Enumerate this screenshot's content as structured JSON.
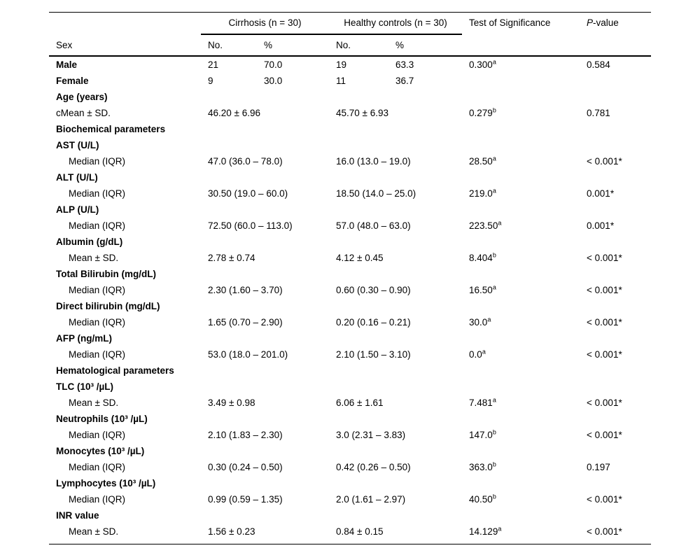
{
  "table": {
    "group_headers": {
      "cirrhosis": "Cirrhosis (n = 30)",
      "healthy": "Healthy controls (n = 30)",
      "test": "Test of Significance",
      "p_italic": "P",
      "p_rest": "-value"
    },
    "sub_headers": {
      "label": "Sex",
      "no1": "No.",
      "pct1": "%",
      "no2": "No.",
      "pct2": "%"
    },
    "rows": [
      {
        "label": "Male",
        "style": "bold",
        "no1": "21",
        "pct1": "70.0",
        "no2": "19",
        "pct2": "63.3",
        "stat": "0.300",
        "stat_sup": "a",
        "p": "0.584"
      },
      {
        "label": "Female",
        "style": "bold",
        "no1": "9",
        "pct1": "30.0",
        "no2": "11",
        "pct2": "36.7",
        "stat": "",
        "stat_sup": "",
        "p": ""
      },
      {
        "label": "Age (years)",
        "style": "bold",
        "v1": "",
        "v2": "",
        "stat": "",
        "stat_sup": "",
        "p": ""
      },
      {
        "label": "cMean ± SD.",
        "style": "plain",
        "v1": "46.20 ± 6.96",
        "v2": "45.70 ± 6.93",
        "stat": "0.279",
        "stat_sup": "b",
        "p": "0.781"
      },
      {
        "label": "Biochemical parameters",
        "style": "bold",
        "v1": "",
        "v2": "",
        "stat": "",
        "stat_sup": "",
        "p": ""
      },
      {
        "label": "AST (U/L)",
        "style": "bold",
        "v1": "",
        "v2": "",
        "stat": "",
        "stat_sup": "",
        "p": ""
      },
      {
        "label": "Median (IQR)",
        "style": "indent",
        "v1": "47.0 (36.0 – 78.0)",
        "v2": "16.0 (13.0 – 19.0)",
        "stat": "28.50",
        "stat_sup": "a",
        "p": "< 0.001*"
      },
      {
        "label": "ALT (U/L)",
        "style": "bold",
        "v1": "",
        "v2": "",
        "stat": "",
        "stat_sup": "",
        "p": ""
      },
      {
        "label": "Median (IQR)",
        "style": "indent",
        "v1": "30.50 (19.0 – 60.0)",
        "v2": "18.50 (14.0 – 25.0)",
        "stat": "219.0",
        "stat_sup": "a",
        "p": "0.001*"
      },
      {
        "label": "ALP (U/L)",
        "style": "bold",
        "v1": "",
        "v2": "",
        "stat": "",
        "stat_sup": "",
        "p": ""
      },
      {
        "label": "Median (IQR)",
        "style": "indent",
        "v1": "72.50 (60.0 – 113.0)",
        "v2": "57.0 (48.0 – 63.0)",
        "stat": "223.50",
        "stat_sup": "a",
        "p": "0.001*"
      },
      {
        "label": "Albumin (g/dL)",
        "style": "bold",
        "v1": "",
        "v2": "",
        "stat": "",
        "stat_sup": "",
        "p": ""
      },
      {
        "label": "Mean ± SD.",
        "style": "indent",
        "v1": "2.78 ± 0.74",
        "v2": "4.12 ± 0.45",
        "stat": "8.404",
        "stat_sup": "b",
        "p": "< 0.001*"
      },
      {
        "label": "Total Bilirubin (mg/dL)",
        "style": "bold",
        "v1": "",
        "v2": "",
        "stat": "",
        "stat_sup": "",
        "p": ""
      },
      {
        "label": "Median (IQR)",
        "style": "indent",
        "v1": "2.30 (1.60 – 3.70)",
        "v2": "0.60 (0.30 – 0.90)",
        "stat": "16.50",
        "stat_sup": "a",
        "p": "< 0.001*"
      },
      {
        "label": "Direct bilirubin (mg/dL)",
        "style": "bold",
        "v1": "",
        "v2": "",
        "stat": "",
        "stat_sup": "",
        "p": ""
      },
      {
        "label": "Median (IQR)",
        "style": "indent",
        "v1": "1.65 (0.70 – 2.90)",
        "v2": "0.20 (0.16 – 0.21)",
        "stat": "30.0",
        "stat_sup": "a",
        "p": "< 0.001*"
      },
      {
        "label": "AFP (ng/mL)",
        "style": "bold",
        "v1": "",
        "v2": "",
        "stat": "",
        "stat_sup": "",
        "p": ""
      },
      {
        "label": "Median (IQR)",
        "style": "indent",
        "v1": "53.0 (18.0 – 201.0)",
        "v2": "2.10 (1.50 – 3.10)",
        "stat": "0.0",
        "stat_sup": "a",
        "p": "< 0.001*"
      },
      {
        "label": "Hematological parameters",
        "style": "bold",
        "v1": "",
        "v2": "",
        "stat": "",
        "stat_sup": "",
        "p": ""
      },
      {
        "label": "TLC (10³ /µL)",
        "style": "bold",
        "v1": "",
        "v2": "",
        "stat": "",
        "stat_sup": "",
        "p": ""
      },
      {
        "label": "Mean ± SD.",
        "style": "indent",
        "v1": "3.49 ± 0.98",
        "v2": "6.06 ± 1.61",
        "stat": "7.481",
        "stat_sup": "a",
        "p": "< 0.001*"
      },
      {
        "label": "Neutrophils (10³ /µL)",
        "style": "bold",
        "v1": "",
        "v2": "",
        "stat": "",
        "stat_sup": "",
        "p": ""
      },
      {
        "label": "Median (IQR)",
        "style": "indent",
        "v1": "2.10 (1.83 – 2.30)",
        "v2": "3.0 (2.31 – 3.83)",
        "stat": "147.0",
        "stat_sup": "b",
        "p": "< 0.001*"
      },
      {
        "label": "Monocytes (10³ /µL)",
        "style": "bold",
        "v1": "",
        "v2": "",
        "stat": "",
        "stat_sup": "",
        "p": ""
      },
      {
        "label": "Median (IQR)",
        "style": "indent",
        "v1": "0.30 (0.24 – 0.50)",
        "v2": "0.42 (0.26 – 0.50)",
        "stat": "363.0",
        "stat_sup": "b",
        "p": "0.197"
      },
      {
        "label": "Lymphocytes (10³ /µL)",
        "style": "bold",
        "v1": "",
        "v2": "",
        "stat": "",
        "stat_sup": "",
        "p": ""
      },
      {
        "label": "Median (IQR)",
        "style": "indent",
        "v1": "0.99 (0.59 – 1.35)",
        "v2": "2.0 (1.61 – 2.97)",
        "stat": "40.50",
        "stat_sup": "b",
        "p": "< 0.001*"
      },
      {
        "label": "INR value",
        "style": "bold",
        "v1": "",
        "v2": "",
        "stat": "",
        "stat_sup": "",
        "p": ""
      },
      {
        "label": "Mean ± SD.",
        "style": "indent",
        "v1": "1.56 ± 0.23",
        "v2": "0.84 ± 0.15",
        "stat": "14.129",
        "stat_sup": "a",
        "p": "< 0.001*"
      }
    ]
  }
}
